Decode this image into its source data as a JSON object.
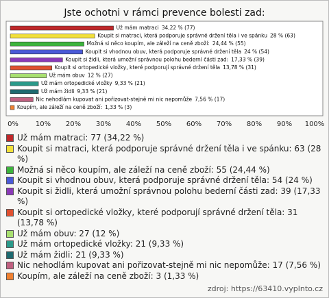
{
  "chart_data": {
    "type": "bar",
    "orientation": "horizontal",
    "title": "Jste ochotni v rámci prevence bolesti zad:",
    "categories": [
      "Už mám matraci",
      "Koupit si matraci, která podporuje správné držení těla i ve spánku",
      "Možná si něco koupím, ale záleží na ceně zboží:",
      "Koupit si vhodnou obuv, která podporuje správné držení těla",
      "Koupit si židli, která umožní správnou polohu bederní části zad:",
      "Koupit si ortopedické vložky, které podporují správné držení těla",
      "Už mám obuv",
      "Už mám ortopedické vložky",
      "Už mám židli",
      "Nic nehodlám kupovat ani pořizovat-stejně mi nic nepomůže",
      "Koupím, ale záleží na ceně zboží:"
    ],
    "values": [
      34.22,
      28,
      24.44,
      24,
      17.33,
      13.78,
      12,
      9.33,
      9.33,
      7.56,
      1.33
    ],
    "value_labels": [
      "34,22 % (77)",
      "28 % (63)",
      "24,44 % (55)",
      "24 % (54)",
      "17,33 % (39)",
      "13,78 % (31)",
      "12 % (27)",
      "9,33 % (21)",
      "9,33 % (21)",
      "7,56 % (17)",
      "1,33 % (3)"
    ],
    "colors": [
      "#c0282a",
      "#f2e03a",
      "#3cb43c",
      "#4a5ad8",
      "#8a3ab8",
      "#e05030",
      "#a8e070",
      "#2a9a8a",
      "#1e6a70",
      "#c06080",
      "#f08030"
    ],
    "legend_labels": [
      "Už mám matraci: 77 (34,22 %)",
      "Koupit si matraci, která podporuje správné držení těla i ve spánku: 63 (28 %)",
      "Možná si něco koupím, ale záleží na ceně zboží: 55 (24,44 %)",
      "Koupit si vhodnou obuv, která podporuje správné držení těla: 54 (24 %)",
      "Koupit si židli, která umožní správnou polohu bederní části zad: 39 (17,33 %)",
      "Koupit si ortopedické vložky, které podporují správné držení těla: 31 (13,78 %)",
      "Už mám obuv: 27 (12 %)",
      "Už mám ortopedické vložky: 21 (9,33 %)",
      "Už mám židli: 21 (9,33 %)",
      "Nic nehodlám kupovat ani pořizovat-stejně mi nic nepomůže: 17 (7,56 %)",
      "Koupím, ale záleží na ceně zboží: 3 (1,33 %)"
    ],
    "xlim": [
      0,
      100
    ],
    "xticks": [
      {
        "value": 0,
        "label": "0%"
      },
      {
        "value": 10,
        "label": "10%"
      },
      {
        "value": 20,
        "label": "20%"
      },
      {
        "value": 30,
        "label": "30%"
      },
      {
        "value": 40,
        "label": "40%"
      },
      {
        "value": 50,
        "label": "50%"
      },
      {
        "value": 60,
        "label": "60%"
      },
      {
        "value": 70,
        "label": "70%"
      },
      {
        "value": 80,
        "label": "80%"
      },
      {
        "value": 90,
        "label": "90%"
      },
      {
        "value": 100,
        "label": "100%"
      }
    ],
    "source": "zdroj: https://63410.vyplnto.cz"
  }
}
